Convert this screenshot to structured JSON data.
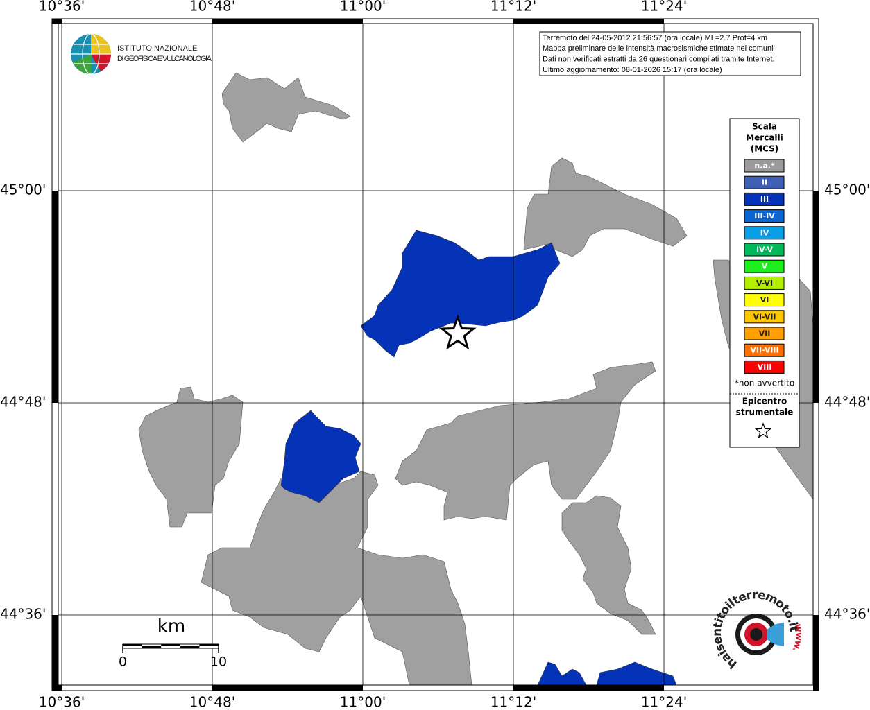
{
  "map": {
    "grid": {
      "lon": [
        {
          "value": 10.6,
          "label": "10°36'"
        },
        {
          "value": 10.8,
          "label": "10°48'"
        },
        {
          "value": 11.0,
          "label": "11°00'"
        },
        {
          "value": 11.2,
          "label": "11°12'"
        },
        {
          "value": 11.4,
          "label": "11°24'"
        }
      ],
      "lat": [
        {
          "value": 45.0,
          "label": "45°00'"
        },
        {
          "value": 44.8,
          "label": "44°48'"
        },
        {
          "value": 44.6,
          "label": "44°36'"
        }
      ]
    },
    "epicenter": {
      "lon": 11.126,
      "lat": 44.865
    }
  },
  "logo": {
    "line1": "ISTITUTO NAZIONALE",
    "line2": "DI GEOFISICA E VULCANOLOGIA"
  },
  "info": [
    "Terremoto del 24-05-2012 21:56:57 (ora locale) ML=2.7 Prof=4 km",
    "Mappa preliminare delle intensità macrosismiche stimate nei comuni",
    "Dati non verificati estratti da 26 questionari compilati tramite Internet.",
    "Ultimo aggiornamento: 08-01-2026 15:17 (ora locale)"
  ],
  "legend": {
    "title": [
      "Scala",
      "Mercalli",
      "(MCS)"
    ],
    "items": [
      {
        "label": "n.a.*",
        "color": "#9a9a9a"
      },
      {
        "label": "II",
        "color": "#3f5fb5"
      },
      {
        "label": "III",
        "color": "#0433b8"
      },
      {
        "label": "III-IV",
        "color": "#0a64d2"
      },
      {
        "label": "IV",
        "color": "#0a9ee6"
      },
      {
        "label": "IV-V",
        "color": "#00b95a"
      },
      {
        "label": "V",
        "color": "#1eee1e"
      },
      {
        "label": "V-VI",
        "color": "#b4ee00"
      },
      {
        "label": "VI",
        "color": "#ffff00"
      },
      {
        "label": "VI-VII",
        "color": "#ffc800"
      },
      {
        "label": "VII",
        "color": "#ffa000"
      },
      {
        "label": "VII-VIII",
        "color": "#ff7000"
      },
      {
        "label": "VIII",
        "color": "#ff0000"
      }
    ],
    "note": "*non avvertito",
    "epicenter_label": [
      "Epicentro",
      "strumentale"
    ]
  },
  "scale_bar": {
    "unit": "km",
    "ticks": [
      0,
      10
    ]
  },
  "site_logo": {
    "name": "haisentitoilterremoto.it",
    "prefix": "www."
  }
}
